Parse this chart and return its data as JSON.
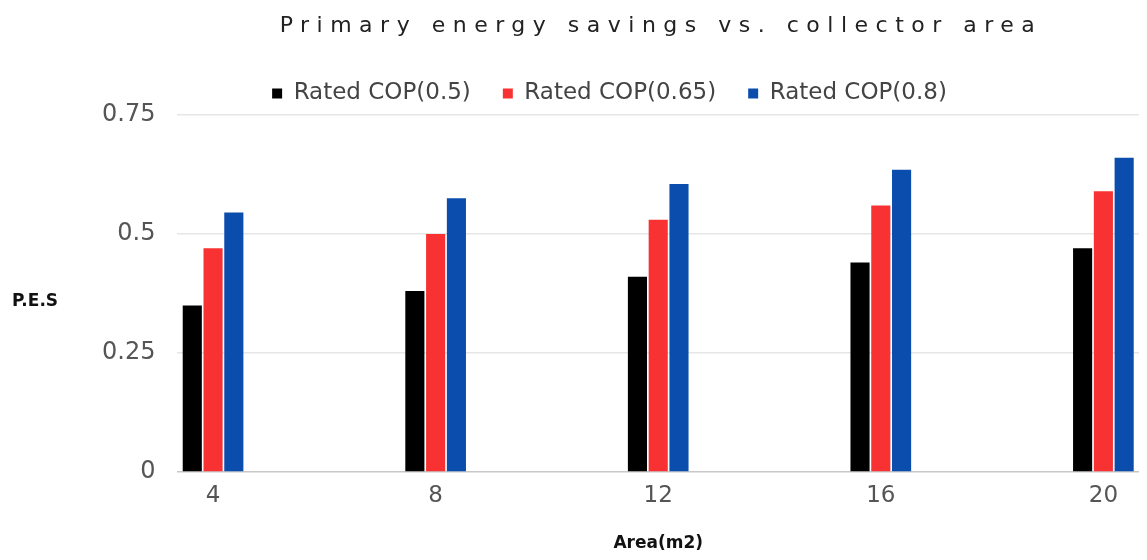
{
  "chart_data": {
    "type": "bar",
    "title": "Primary energy savings vs. collector area",
    "xlabel": "Area(m2)",
    "ylabel": "P.E.S",
    "categories": [
      "4",
      "8",
      "12",
      "16",
      "20"
    ],
    "series": [
      {
        "name": "Rated COP(0.5)",
        "color": "#000000",
        "values": [
          0.35,
          0.38,
          0.41,
          0.44,
          0.47
        ]
      },
      {
        "name": "Rated COP(0.65)",
        "color": "#f83232",
        "values": [
          0.47,
          0.5,
          0.53,
          0.56,
          0.59
        ]
      },
      {
        "name": "Rated COP(0.8)",
        "color": "#0a4dad",
        "values": [
          0.545,
          0.575,
          0.605,
          0.635,
          0.66
        ]
      }
    ],
    "ylim": [
      0,
      0.75
    ],
    "yticks": [
      0,
      0.25,
      0.5,
      0.75
    ],
    "grid": "y",
    "legend": "top"
  }
}
